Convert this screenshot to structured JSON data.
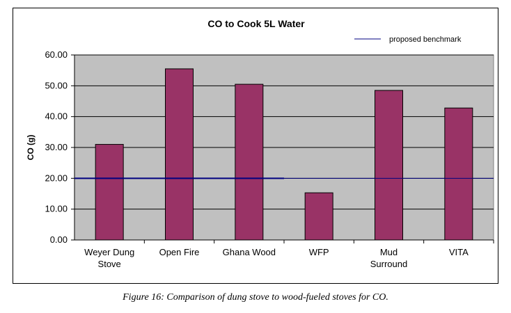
{
  "colors": {
    "plot_background": "#c0c0c0",
    "bar_fill": "#993366",
    "benchmark_line": "#000080",
    "gridline": "#000000"
  },
  "chart_data": {
    "type": "bar",
    "title": "CO to Cook 5L Water",
    "ylabel": "CO (g)",
    "xlabel": "",
    "categories": [
      [
        "Weyer Dung",
        "Stove"
      ],
      [
        "Open Fire"
      ],
      [
        "Ghana Wood"
      ],
      [
        "WFP"
      ],
      [
        "Mud",
        "Surround"
      ],
      [
        "VITA"
      ]
    ],
    "values": [
      31,
      55.5,
      50.5,
      15.3,
      48.5,
      42.8
    ],
    "ylim": [
      0,
      60
    ],
    "yticks": [
      "0.00",
      "10.00",
      "20.00",
      "30.00",
      "40.00",
      "50.00",
      "60.00"
    ],
    "grid": true,
    "legend_position": "top-right",
    "benchmark": {
      "name": "proposed benchmark",
      "value": 20
    }
  },
  "caption": "Figure 16: Comparison of dung stove to wood-fueled stoves for CO."
}
